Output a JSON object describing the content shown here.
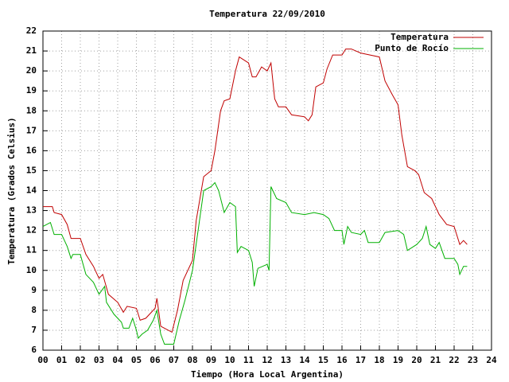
{
  "chart_data": {
    "type": "line",
    "title": "Temperatura 22/09/2010",
    "xlabel": "Tiempo (Hora Local Argentina)",
    "ylabel": "Temperatura (Grados Celsius)",
    "xlim": [
      0,
      24
    ],
    "xticks": [
      {
        "value": 0,
        "label": "00"
      },
      {
        "value": 1,
        "label": "01"
      },
      {
        "value": 2,
        "label": "02"
      },
      {
        "value": 3,
        "label": "03"
      },
      {
        "value": 4,
        "label": "04"
      },
      {
        "value": 5,
        "label": "05"
      },
      {
        "value": 6,
        "label": "06"
      },
      {
        "value": 7,
        "label": "07"
      },
      {
        "value": 8,
        "label": "08"
      },
      {
        "value": 9,
        "label": "09"
      },
      10,
      11,
      12,
      13,
      14,
      15,
      16,
      17,
      18,
      19,
      20,
      21,
      22,
      23,
      24
    ],
    "ylim": [
      6,
      22
    ],
    "yticks": [
      6,
      7,
      8,
      9,
      10,
      11,
      12,
      13,
      14,
      15,
      16,
      17,
      18,
      19,
      20,
      21,
      22
    ],
    "grid": true,
    "legend": "top-right",
    "series": [
      {
        "name": "Temperatura",
        "color": "#c00000",
        "x": [
          0.0,
          0.5,
          0.6,
          1.0,
          1.3,
          1.5,
          2.0,
          2.3,
          2.7,
          3.0,
          3.2,
          3.5,
          4.0,
          4.3,
          4.5,
          5.0,
          5.2,
          5.5,
          6.0,
          6.1,
          6.3,
          6.5,
          6.9,
          7.2,
          7.5,
          8.0,
          8.2,
          8.6,
          9.0,
          9.2,
          9.5,
          9.7,
          10.0,
          10.3,
          10.5,
          11.0,
          11.2,
          11.4,
          11.7,
          12.0,
          12.2,
          12.4,
          12.6,
          13.0,
          13.3,
          14.0,
          14.2,
          14.4,
          14.6,
          15.0,
          15.2,
          15.5,
          16.0,
          16.2,
          16.5,
          17.0,
          17.5,
          18.0,
          18.3,
          18.7,
          19.0,
          19.2,
          19.5,
          19.9,
          20.1,
          20.4,
          20.8,
          21.2,
          21.6,
          22.0,
          22.3,
          22.5,
          22.7
        ],
        "values": [
          13.2,
          13.2,
          12.9,
          12.8,
          12.3,
          11.6,
          11.6,
          10.8,
          10.2,
          9.6,
          9.8,
          8.8,
          8.4,
          7.9,
          8.2,
          8.1,
          7.5,
          7.6,
          8.1,
          8.6,
          7.2,
          7.1,
          6.9,
          8.0,
          9.5,
          10.5,
          12.5,
          14.7,
          15.0,
          16.0,
          18.0,
          18.5,
          18.6,
          20.0,
          20.7,
          20.4,
          19.7,
          19.7,
          20.2,
          20.0,
          20.4,
          18.6,
          18.2,
          18.2,
          17.8,
          17.7,
          17.5,
          17.8,
          19.2,
          19.4,
          20.1,
          20.8,
          20.8,
          21.1,
          21.1,
          20.9,
          20.8,
          20.7,
          19.5,
          18.8,
          18.3,
          16.8,
          15.2,
          15.0,
          14.8,
          13.9,
          13.6,
          12.8,
          12.3,
          12.2,
          11.3,
          11.5,
          11.3
        ]
      },
      {
        "name": "Punto de Rocío",
        "color": "#00b000",
        "x": [
          0.0,
          0.4,
          0.6,
          1.0,
          1.3,
          1.5,
          1.6,
          2.0,
          2.3,
          2.7,
          3.0,
          3.3,
          3.4,
          3.8,
          4.2,
          4.3,
          4.6,
          4.8,
          5.0,
          5.1,
          5.3,
          5.6,
          5.9,
          6.1,
          6.3,
          6.5,
          7.0,
          7.3,
          7.6,
          8.0,
          8.3,
          8.6,
          9.0,
          9.2,
          9.4,
          9.7,
          10.0,
          10.3,
          10.4,
          10.6,
          11.0,
          11.2,
          11.3,
          11.5,
          12.0,
          12.1,
          12.2,
          12.5,
          13.0,
          13.3,
          14.0,
          14.5,
          15.0,
          15.3,
          15.6,
          16.0,
          16.1,
          16.3,
          16.5,
          17.0,
          17.2,
          17.4,
          18.0,
          18.3,
          19.0,
          19.3,
          19.5,
          20.0,
          20.3,
          20.5,
          20.7,
          21.0,
          21.2,
          21.5,
          22.0,
          22.2,
          22.3,
          22.5,
          22.7
        ],
        "values": [
          12.2,
          12.4,
          11.8,
          11.8,
          11.2,
          10.6,
          10.8,
          10.8,
          9.8,
          9.4,
          8.8,
          9.2,
          8.4,
          7.8,
          7.4,
          7.1,
          7.1,
          7.6,
          7.0,
          6.6,
          6.8,
          7.0,
          7.5,
          8.0,
          6.8,
          6.3,
          6.3,
          7.5,
          8.5,
          10.0,
          12.0,
          14.0,
          14.2,
          14.4,
          14.0,
          12.9,
          13.4,
          13.2,
          10.9,
          11.2,
          11.0,
          10.4,
          9.2,
          10.1,
          10.3,
          10.0,
          14.2,
          13.6,
          13.4,
          12.9,
          12.8,
          12.9,
          12.8,
          12.6,
          12.0,
          12.0,
          11.3,
          12.2,
          11.9,
          11.8,
          12.0,
          11.4,
          11.4,
          11.9,
          12.0,
          11.8,
          11.0,
          11.3,
          11.6,
          12.2,
          11.3,
          11.1,
          11.4,
          10.6,
          10.6,
          10.3,
          9.8,
          10.2,
          10.2
        ]
      }
    ]
  }
}
